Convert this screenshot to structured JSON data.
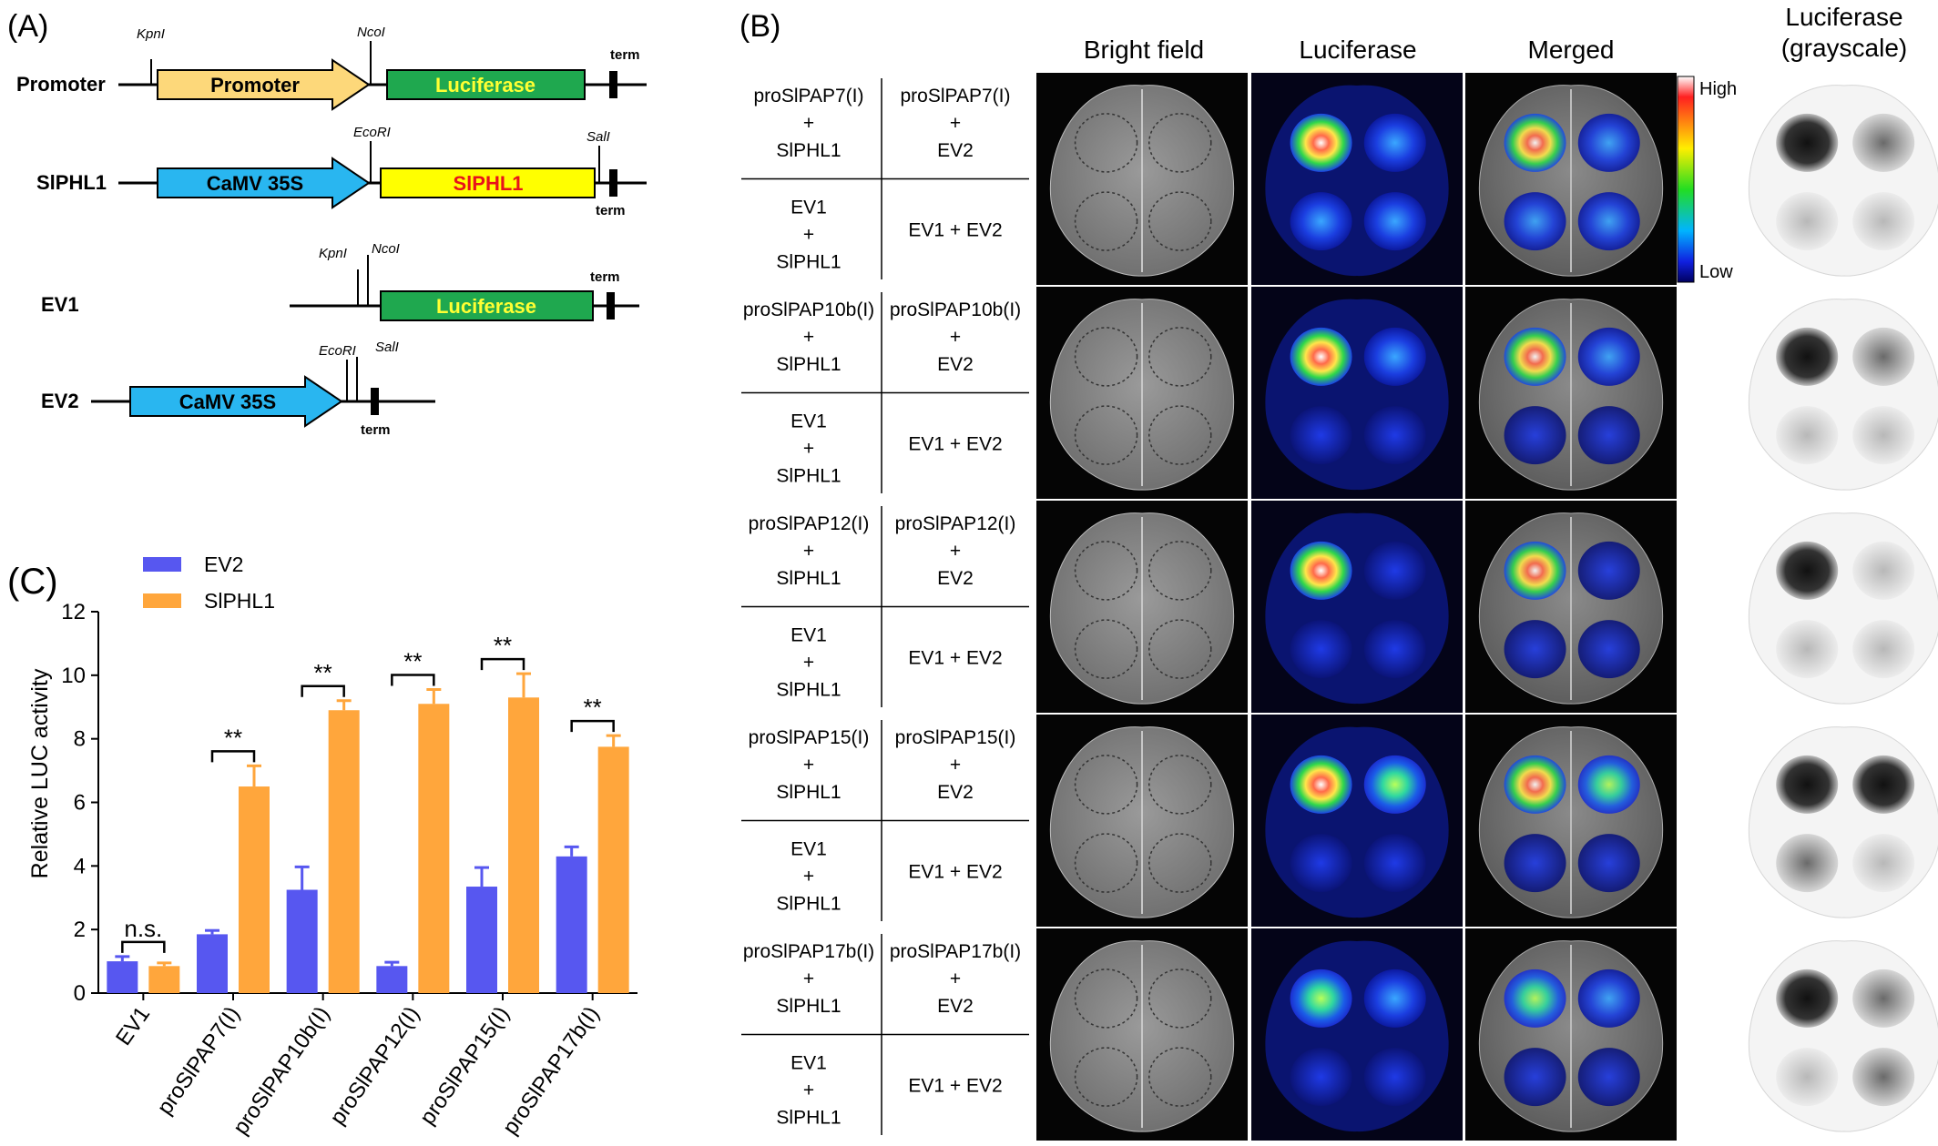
{
  "panels": {
    "a": "(A)",
    "b": "(B)",
    "c": "(C)"
  },
  "constructs": {
    "promoter": {
      "name": "Promoter",
      "site1": "KpnI",
      "site2": "NcoI",
      "box1": "Promoter",
      "box2": "Luciferase",
      "term": "term"
    },
    "slphl1": {
      "name": "SlPHL1",
      "site1": "EcoRI",
      "site2": "SalI",
      "box1": "CaMV 35S",
      "box2": "SlPHL1",
      "term": "term"
    },
    "ev1": {
      "name": "EV1",
      "site1": "KpnI",
      "site2": "NcoI",
      "box1": "Luciferase",
      "term": "term"
    },
    "ev2": {
      "name": "EV2",
      "site1": "EcoRI",
      "site2": "SalI",
      "box1": "CaMV 35S",
      "term": "term"
    },
    "colors": {
      "promoter": "#fdd87a",
      "luciferase": "#1fa84f",
      "luciferase_text": "#ffff33",
      "camv": "#29b6f0",
      "slphl1_box": "#ffff00",
      "slphl1_text": "#e8121b"
    }
  },
  "imaging": {
    "column_headers": [
      "Bright field",
      "Luciferase",
      "Merged"
    ],
    "grayscale_header": [
      "Luciferase",
      "(grayscale)"
    ],
    "scale_high": "High",
    "scale_low": "Low",
    "rows": [
      {
        "tl": [
          "proSlPAP7(I)",
          "+",
          "SlPHL1"
        ],
        "tr": [
          "proSlPAP7(I)",
          "+",
          "EV2"
        ],
        "bl": [
          "EV1",
          "+",
          "SlPHL1"
        ],
        "br": "EV1 + EV2"
      },
      {
        "tl": [
          "proSlPAP10b(I)",
          "+",
          "SlPHL1"
        ],
        "tr": [
          "proSlPAP10b(I)",
          "+",
          "EV2"
        ],
        "bl": [
          "EV1",
          "+",
          "SlPHL1"
        ],
        "br": "EV1 + EV2"
      },
      {
        "tl": [
          "proSlPAP12(I)",
          "+",
          "SlPHL1"
        ],
        "tr": [
          "proSlPAP12(I)",
          "+",
          "EV2"
        ],
        "bl": [
          "EV1",
          "+",
          "SlPHL1"
        ],
        "br": "EV1 + EV2"
      },
      {
        "tl": [
          "proSlPAP15(I)",
          "+",
          "SlPHL1"
        ],
        "tr": [
          "proSlPAP15(I)",
          "+",
          "EV2"
        ],
        "bl": [
          "EV1",
          "+",
          "SlPHL1"
        ],
        "br": "EV1 + EV2"
      },
      {
        "tl": [
          "proSlPAP17b(I)",
          "+",
          "SlPHL1"
        ],
        "tr": [
          "proSlPAP17b(I)",
          "+",
          "EV2"
        ],
        "bl": [
          "EV1",
          "+",
          "SlPHL1"
        ],
        "br": "EV1 + EV2"
      }
    ]
  },
  "chart_data": {
    "type": "bar",
    "ylabel": "Relative LUC activity",
    "xlabel": "",
    "ylim": [
      0,
      12
    ],
    "yticks": [
      0,
      2,
      4,
      6,
      8,
      10,
      12
    ],
    "categories": [
      "EV1",
      "proSlPAP7(I)",
      "proSlPAP10b(I)",
      "proSlPAP12(I)",
      "proSlPAP15(I)",
      "proSlPAP17b(I)"
    ],
    "series": [
      {
        "name": "EV2",
        "color": "#5757f0",
        "values": [
          1.0,
          1.85,
          3.25,
          0.85,
          3.35,
          4.3
        ],
        "errors": [
          0.15,
          0.12,
          0.72,
          0.12,
          0.6,
          0.3
        ]
      },
      {
        "name": "SlPHL1",
        "color": "#ffa63c",
        "values": [
          0.85,
          6.5,
          8.9,
          9.1,
          9.3,
          7.75
        ],
        "errors": [
          0.1,
          0.65,
          0.3,
          0.45,
          0.75,
          0.35
        ]
      }
    ],
    "significance": [
      "n.s.",
      "**",
      "**",
      "**",
      "**",
      "**"
    ],
    "legend_position": "top-left"
  }
}
